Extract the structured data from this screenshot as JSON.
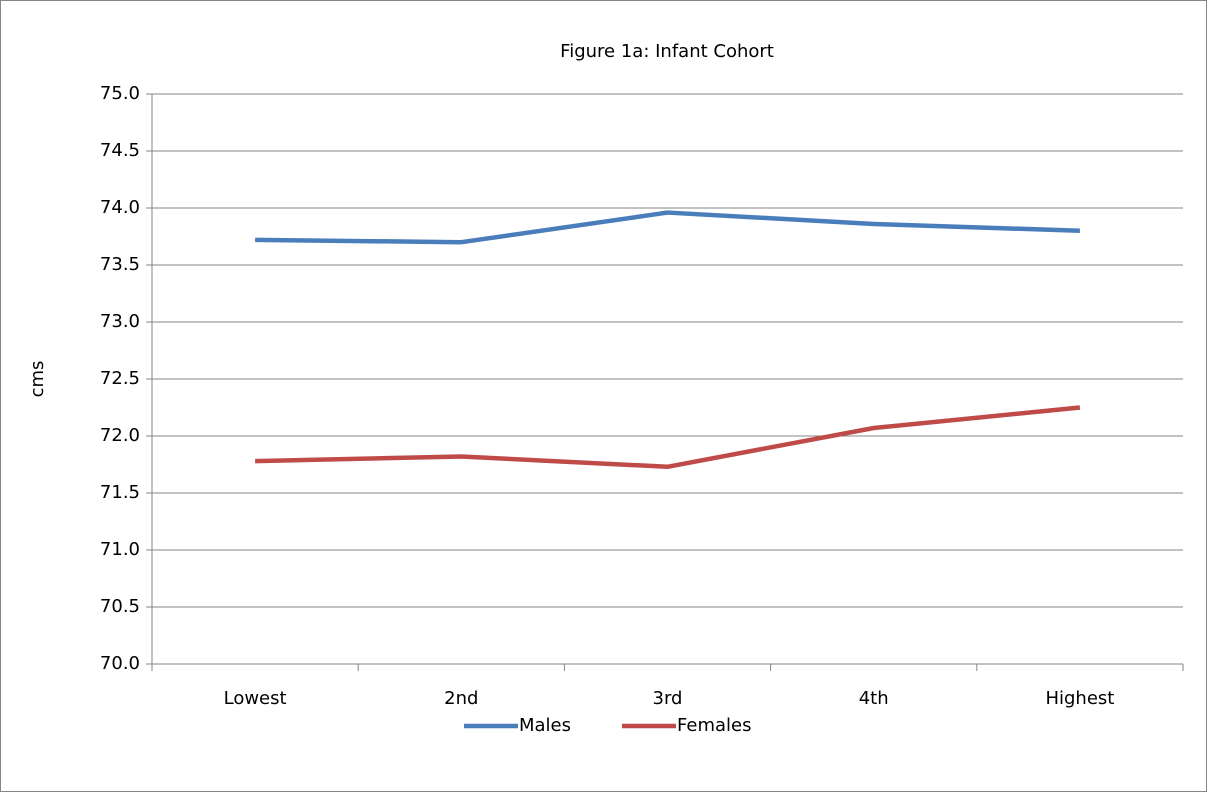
{
  "chart_data": {
    "type": "line",
    "title": "Figure 1a: Infant Cohort",
    "y_label": "cms",
    "categories": [
      "Lowest",
      "2nd",
      "3rd",
      "4th",
      "Highest"
    ],
    "series": [
      {
        "name": "Males",
        "color": "#4a7ebb",
        "values": [
          73.72,
          73.7,
          73.96,
          73.86,
          73.8
        ]
      },
      {
        "name": "Females",
        "color": "#be4b48",
        "values": [
          71.78,
          71.82,
          71.73,
          72.07,
          72.25
        ]
      }
    ],
    "ylim": [
      70,
      75
    ],
    "yticks": [
      {
        "value": 70,
        "label": "70.0"
      },
      {
        "value": 70.5,
        "label": "70.5"
      },
      {
        "value": 71,
        "label": "71.0"
      },
      {
        "value": 71.5,
        "label": "71.5"
      },
      {
        "value": 72,
        "label": "72.0"
      },
      {
        "value": 72.5,
        "label": "72.5"
      },
      {
        "value": 73,
        "label": "73.0"
      },
      {
        "value": 73.5,
        "label": "73.5"
      },
      {
        "value": 74,
        "label": "74.0"
      },
      {
        "value": 74.5,
        "label": "74.5"
      },
      {
        "value": 75,
        "label": "75.0"
      }
    ],
    "grid": true,
    "legend": "bottom"
  }
}
